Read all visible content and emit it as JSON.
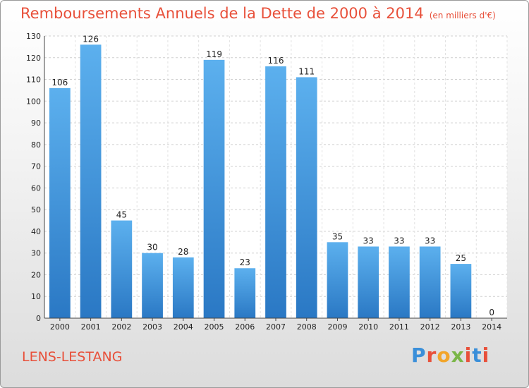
{
  "header": {
    "title": "Remboursements Annuels de la Dette de 2000 à 2014",
    "unit": "(en milliers d'€)"
  },
  "footer": {
    "place": "LENS-LESTANG",
    "logo": "Proxiti",
    "logo_colors": [
      "#3a8fd9",
      "#e8503a",
      "#f2a52a",
      "#7ab648",
      "#e8503a",
      "#3a8fd9",
      "#e8503a"
    ]
  },
  "chart_data": {
    "type": "bar",
    "categories": [
      "2000",
      "2001",
      "2002",
      "2003",
      "2004",
      "2005",
      "2006",
      "2007",
      "2008",
      "2009",
      "2010",
      "2011",
      "2012",
      "2013",
      "2014"
    ],
    "values": [
      106,
      126,
      45,
      30,
      28,
      119,
      23,
      116,
      111,
      35,
      33,
      33,
      33,
      25,
      0
    ],
    "data_labels": [
      "106",
      "126",
      "45",
      "30",
      "28",
      "119",
      "23",
      "116",
      "111",
      "35",
      "33",
      "33",
      "33",
      "25",
      "0"
    ],
    "ylim": [
      0,
      130
    ],
    "yticks": [
      "0",
      "10",
      "20",
      "30",
      "40",
      "50",
      "60",
      "70",
      "80",
      "90",
      "100",
      "110",
      "120",
      "130"
    ],
    "grid": true,
    "bar_color": "#4a9be0"
  }
}
